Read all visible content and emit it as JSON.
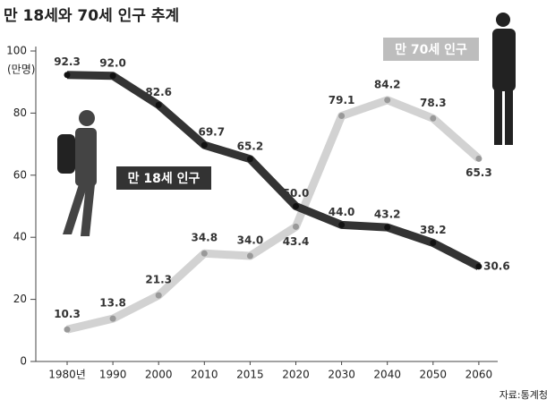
{
  "chart_data": {
    "type": "line",
    "title": "만 18세와 70세 인구 추계",
    "y_label": "(만명)",
    "source": "자료:통계청",
    "categories": [
      "1980년",
      "1990",
      "2000",
      "2010",
      "2015",
      "2020",
      "2030",
      "2040",
      "2050",
      "2060"
    ],
    "series": [
      {
        "name": "만 18세 인구",
        "color": "#333333",
        "values": [
          92.3,
          92.0,
          82.6,
          69.7,
          65.2,
          50.0,
          44.0,
          43.2,
          38.2,
          30.6
        ],
        "value_labels": [
          "92.3",
          "92.0",
          "82.6",
          "69.7",
          "65.2",
          "50.0",
          "44.0",
          "43.2",
          "38.2",
          "30.6"
        ]
      },
      {
        "name": "만 70세 인구",
        "color": "#d2d2d2",
        "values": [
          10.3,
          13.8,
          21.3,
          34.8,
          34.0,
          43.4,
          79.1,
          84.2,
          78.3,
          65.3
        ],
        "value_labels": [
          "10.3",
          "13.8",
          "21.3",
          "34.8",
          "34.0",
          "43.4",
          "79.1",
          "84.2",
          "78.3",
          "65.3"
        ]
      }
    ],
    "ylim": [
      0,
      100
    ],
    "yticks": [
      0,
      20,
      40,
      60,
      80,
      100
    ]
  }
}
